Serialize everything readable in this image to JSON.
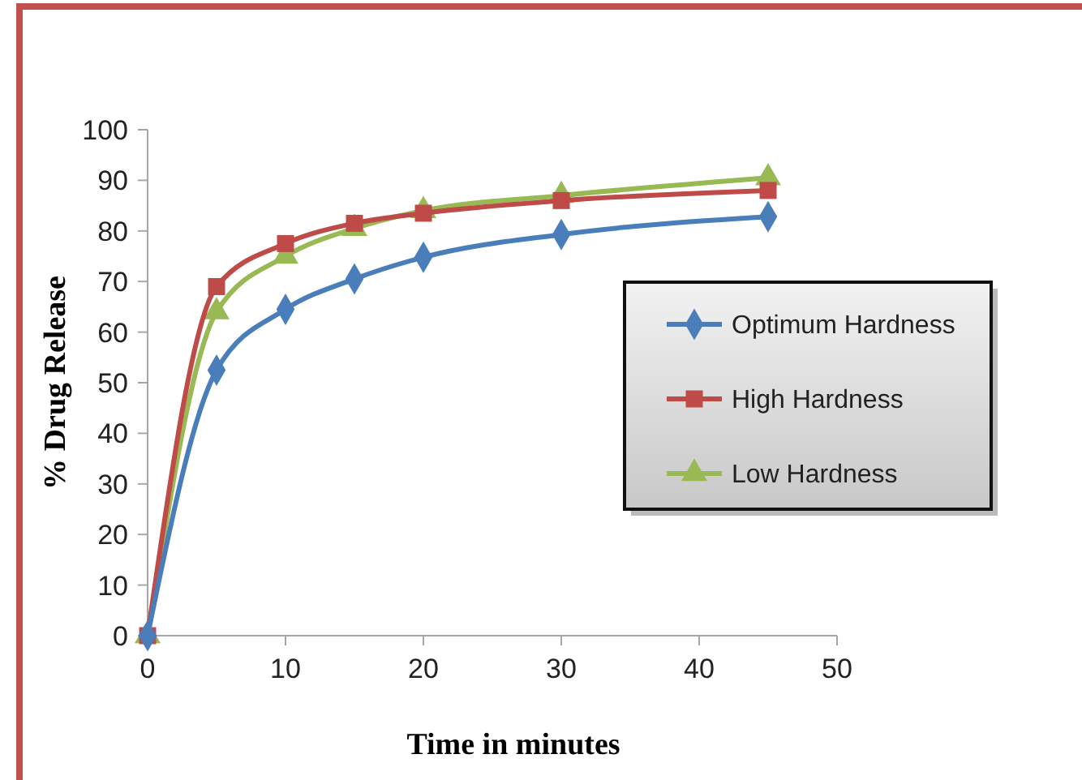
{
  "chart_data": {
    "type": "line",
    "xlabel": "Time in minutes",
    "ylabel": "% Drug Release",
    "x": [
      0,
      5,
      10,
      15,
      20,
      30,
      45
    ],
    "series": [
      {
        "name": "Optimum Hardness",
        "color": "#4a7ebb",
        "marker": "diamond",
        "values": [
          0,
          52.5,
          64.5,
          70.5,
          74.8,
          79.3,
          82.8
        ]
      },
      {
        "name": "High Hardness",
        "color": "#be4b48",
        "marker": "square",
        "values": [
          0,
          69,
          77.5,
          81.5,
          83.5,
          86,
          88
        ]
      },
      {
        "name": "Low Hardness",
        "color": "#98b954",
        "marker": "triangle",
        "values": [
          0,
          64,
          75,
          80.5,
          84,
          87,
          90.5
        ]
      }
    ],
    "xlim": [
      0,
      50
    ],
    "xticks": [
      0,
      10,
      20,
      30,
      40,
      50
    ],
    "ylim": [
      0,
      100
    ],
    "yticks": [
      0,
      10,
      20,
      30,
      40,
      50,
      60,
      70,
      80,
      90,
      100
    ],
    "grid": false,
    "legend": "right",
    "line_style": "solid"
  }
}
